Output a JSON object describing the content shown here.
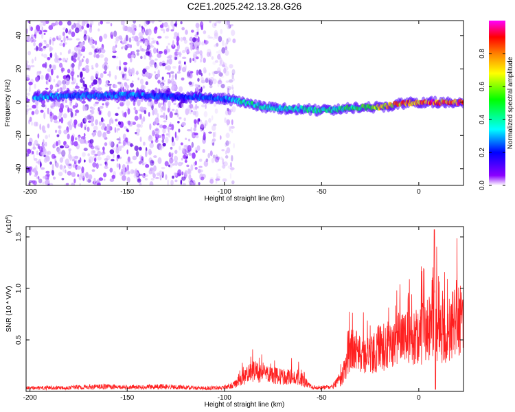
{
  "figure_title": "C2E1.2025.242.13.28.G26",
  "chart_data": [
    {
      "type": "heatmap",
      "title": "C2E1.2025.242.13.28.G26",
      "xlabel": "Height of straight line (km)",
      "ylabel": "Frequency (Hz)",
      "xlim": [
        -202,
        23
      ],
      "ylim": [
        -50,
        49
      ],
      "x_ticks": [
        -200,
        -150,
        -100,
        -50,
        0
      ],
      "x_tick_labels": [
        "-200",
        "-150",
        "-100",
        "-50",
        "0"
      ],
      "y_ticks": [
        -40,
        -20,
        0,
        20,
        40
      ],
      "y_tick_labels": [
        "-40",
        "-20",
        "0",
        "20",
        "40"
      ],
      "colorbar": {
        "label": "Normalized spectral amplitude",
        "range": [
          0,
          1
        ],
        "ticks": [
          0.0,
          0.2,
          0.4,
          0.6,
          0.8
        ],
        "tick_labels": [
          "0.0",
          "0.2",
          "0.4",
          "0.6",
          "0.8"
        ],
        "colormap": [
          "#ffffff",
          "#8b00ff",
          "#0000ff",
          "#00ffff",
          "#00ff00",
          "#ffff00",
          "#ff8000",
          "#ff0000",
          "#ff00ff"
        ]
      },
      "ridge": {
        "x": [
          -197,
          -180,
          -160,
          -140,
          -122,
          -110,
          -100,
          -90,
          -80,
          -70,
          -60,
          -50,
          -40,
          -30,
          -20,
          -10,
          0,
          10,
          20
        ],
        "freq": [
          3,
          4,
          4,
          4,
          3,
          3,
          2,
          0,
          -3,
          -4,
          -4,
          -5,
          -4,
          -3,
          -3,
          -1,
          0,
          0,
          0
        ],
        "amplitude": [
          0.35,
          0.3,
          0.32,
          0.3,
          0.25,
          0.3,
          0.3,
          0.45,
          0.45,
          0.42,
          0.45,
          0.45,
          0.5,
          0.55,
          0.75,
          0.85,
          0.9,
          0.95,
          0.95
        ]
      },
      "noise_regions": [
        {
          "x_from": -202,
          "x_to": -110,
          "level": "strong"
        },
        {
          "x_from": -110,
          "x_to": -95,
          "level": "faint"
        }
      ]
    },
    {
      "type": "line",
      "title": "",
      "xlabel": "Height of straight line (km)",
      "ylabel": "SNR (10 * V/V)",
      "y_exponent_label": "(x10",
      "y_exponent_power": "4",
      "y_exponent_close": ")",
      "xlim": [
        -202,
        23
      ],
      "ylim": [
        0,
        1.6
      ],
      "x_ticks": [
        -200,
        -150,
        -100,
        -50,
        0
      ],
      "x_tick_labels": [
        "-200",
        "-150",
        "-100",
        "-50",
        "0"
      ],
      "y_ticks": [
        0.5,
        1.0,
        1.5
      ],
      "y_tick_labels": [
        "0.5",
        "1.0",
        "1.5"
      ],
      "series": [
        {
          "name": "SNR",
          "color": "#ff2020",
          "envelope_x": [
            -202,
            -180,
            -160,
            -150,
            -130,
            -110,
            -100,
            -95,
            -90,
            -85,
            -80,
            -75,
            -70,
            -65,
            -60,
            -55,
            -50,
            -45,
            -40,
            -37,
            -35,
            -33,
            -30,
            -25,
            -20,
            -15,
            -10,
            -5,
            0,
            5,
            8,
            10,
            15,
            20,
            23
          ],
          "envelope_y": [
            0.04,
            0.05,
            0.06,
            0.05,
            0.06,
            0.04,
            0.05,
            0.08,
            0.18,
            0.25,
            0.22,
            0.2,
            0.18,
            0.18,
            0.15,
            0.05,
            0.05,
            0.05,
            0.15,
            0.35,
            0.5,
            0.5,
            0.45,
            0.45,
            0.55,
            0.55,
            0.65,
            0.65,
            0.7,
            0.8,
            1.0,
            0.7,
            0.8,
            0.85,
            0.9
          ],
          "spike_x": [
            8
          ],
          "spike_y": [
            1.57
          ]
        }
      ]
    }
  ]
}
